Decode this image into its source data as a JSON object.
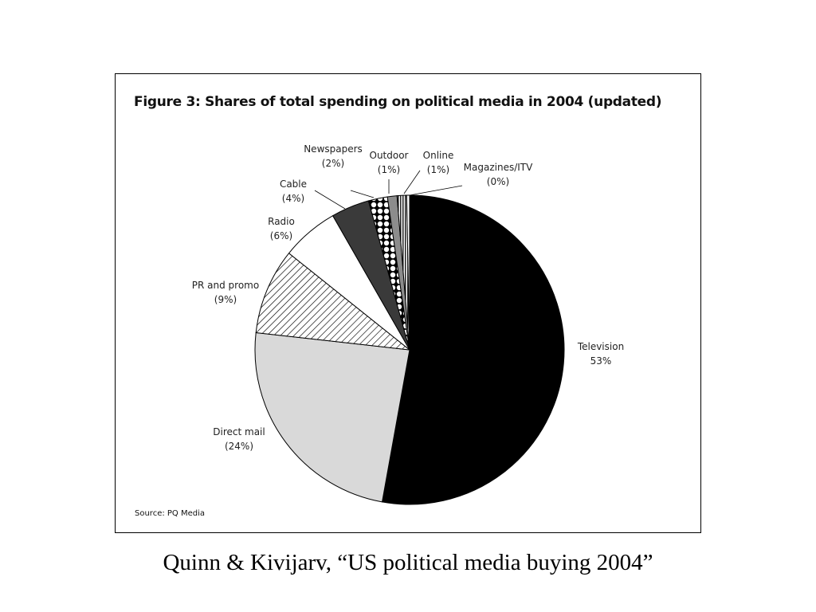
{
  "caption": "Quinn & Kivijarv, “US political media buying 2004”",
  "chart_data": {
    "type": "pie",
    "title": "Figure 3: Shares of total spending on political media in 2004 (updated)",
    "source": "Source: PQ Media",
    "slices": [
      {
        "name": "Television",
        "value_label": "53%",
        "value": 53,
        "fill": "solid-black"
      },
      {
        "name": "Direct mail",
        "value_label": "(24%)",
        "value": 24,
        "fill": "light-gray"
      },
      {
        "name": "PR and promo",
        "value_label": "(9%)",
        "value": 9,
        "fill": "diagonal-hatch"
      },
      {
        "name": "Radio",
        "value_label": "(6%)",
        "value": 6,
        "fill": "white"
      },
      {
        "name": "Cable",
        "value_label": "(4%)",
        "value": 4,
        "fill": "dark-gray"
      },
      {
        "name": "Newspapers",
        "value_label": "(2%)",
        "value": 2,
        "fill": "dots-pattern"
      },
      {
        "name": "Outdoor",
        "value_label": "(1%)",
        "value": 1,
        "fill": "medium-gray"
      },
      {
        "name": "Online",
        "value_label": "(1%)",
        "value": 1,
        "fill": "vertical-stripes"
      },
      {
        "name": "Magazines/ITV",
        "value_label": "(0%)",
        "value": 0.3,
        "fill": "white"
      }
    ],
    "colors": {
      "television": "#000000",
      "direct_mail": "#d9d9d9",
      "cable": "#3a3a3a",
      "outdoor": "#8c8c8c"
    }
  }
}
